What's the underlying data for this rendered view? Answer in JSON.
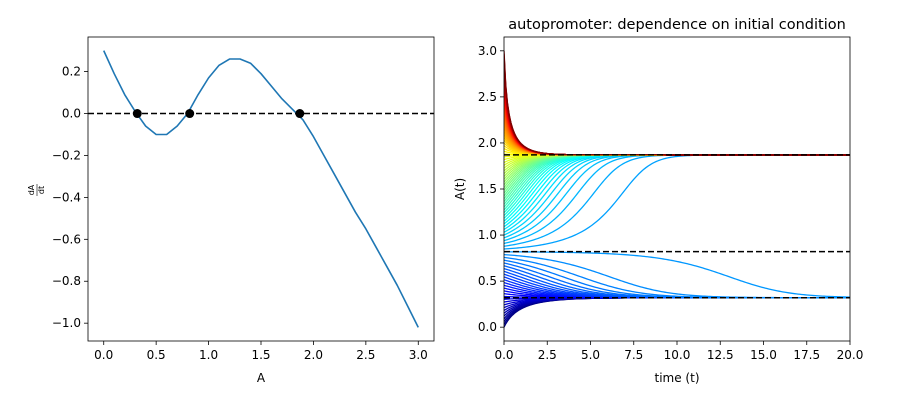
{
  "chart_data": [
    {
      "type": "line",
      "title": "",
      "xlabel": "A",
      "ylabel": "dA/dt",
      "ylabel_numerator": "dA",
      "ylabel_denominator": "dt",
      "xlim": [
        -0.15,
        3.15
      ],
      "ylim": [
        -1.085,
        0.365
      ],
      "xticks": [
        0.0,
        0.5,
        1.0,
        1.5,
        2.0,
        2.5,
        3.0
      ],
      "xtick_labels": [
        "0.0",
        "0.5",
        "1.0",
        "1.5",
        "2.0",
        "2.5",
        "3.0"
      ],
      "yticks": [
        -1.0,
        -0.8,
        -0.6,
        -0.4,
        -0.2,
        0.0,
        0.2
      ],
      "ytick_labels": [
        "−1.0",
        "−0.8",
        "−0.6",
        "−0.4",
        "−0.2",
        "0.0",
        "0.2"
      ],
      "grid": false,
      "series": [
        {
          "color": "#1f77b4",
          "x": [
            0.0,
            0.1,
            0.2,
            0.3,
            0.4,
            0.5,
            0.6,
            0.7,
            0.8,
            0.9,
            1.0,
            1.1,
            1.2,
            1.3,
            1.4,
            1.5,
            1.6,
            1.7,
            1.8,
            1.9,
            2.0,
            2.1,
            2.2,
            2.3,
            2.4,
            2.5,
            2.6,
            2.7,
            2.8,
            2.9,
            3.0
          ],
          "y": [
            0.3,
            0.19,
            0.09,
            0.01,
            -0.06,
            -0.1,
            -0.1,
            -0.06,
            0.0,
            0.09,
            0.17,
            0.23,
            0.26,
            0.26,
            0.24,
            0.19,
            0.13,
            0.07,
            0.02,
            -0.03,
            -0.11,
            -0.2,
            -0.29,
            -0.38,
            -0.47,
            -0.55,
            -0.64,
            -0.73,
            -0.82,
            -0.92,
            -1.02
          ]
        }
      ],
      "reference_line": {
        "y": 0.0,
        "style": "dashed",
        "color": "#000000"
      },
      "fixed_points": [
        {
          "x": 0.32,
          "y": 0.0
        },
        {
          "x": 0.82,
          "y": 0.0
        },
        {
          "x": 1.87,
          "y": 0.0
        }
      ]
    },
    {
      "type": "line",
      "title": "autopromoter: dependence on initial condition",
      "xlabel": "time (t)",
      "ylabel": "A(t)",
      "xlim": [
        0.0,
        20.0
      ],
      "ylim": [
        -0.15,
        3.15
      ],
      "xticks": [
        0.0,
        2.5,
        5.0,
        7.5,
        10.0,
        12.5,
        15.0,
        17.5,
        20.0
      ],
      "xtick_labels": [
        "0.0",
        "2.5",
        "5.0",
        "7.5",
        "10.0",
        "12.5",
        "15.0",
        "17.5",
        "20.0"
      ],
      "yticks": [
        0.0,
        0.5,
        1.0,
        1.5,
        2.0,
        2.5,
        3.0
      ],
      "ytick_labels": [
        "0.0",
        "0.5",
        "1.0",
        "1.5",
        "2.0",
        "2.5",
        "3.0"
      ],
      "grid": false,
      "colormap": "jet",
      "initial_conditions": {
        "from": 0.0,
        "to": 3.0,
        "count": 100
      },
      "steady_states": [
        0.32,
        0.82,
        1.87
      ],
      "reference_lines": [
        {
          "y": 1.87,
          "style": "dashed",
          "color": "#000000"
        },
        {
          "y": 0.82,
          "style": "dashed",
          "color": "#000000"
        },
        {
          "y": 0.32,
          "style": "dashed",
          "color": "#000000"
        }
      ]
    }
  ]
}
